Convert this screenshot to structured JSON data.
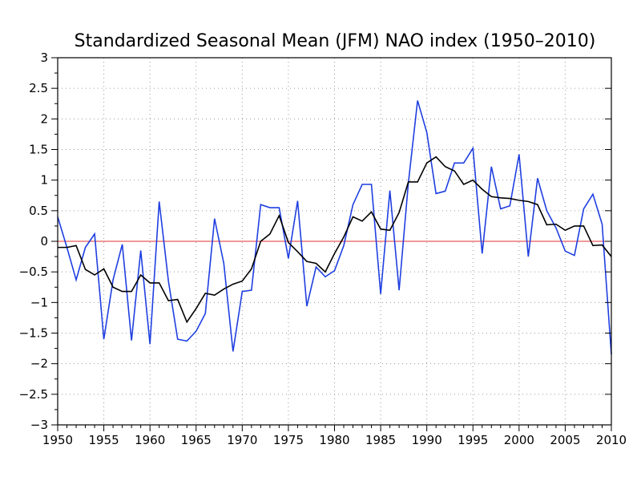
{
  "chart_data": {
    "type": "line",
    "title": "Standardized Seasonal Mean (JFM) NAO index (1950–2010)",
    "xlabel": "",
    "ylabel": "",
    "xlim": [
      1950,
      2010
    ],
    "ylim": [
      -3,
      3
    ],
    "grid": true,
    "x_ticks": [
      "1950",
      "1955",
      "1960",
      "1965",
      "1970",
      "1975",
      "1980",
      "1985",
      "1990",
      "1995",
      "2000",
      "2005",
      "2010"
    ],
    "y_ticks": [
      "3",
      "2.5",
      "2",
      "1.5",
      "1",
      "0.5",
      "0",
      "−0.5",
      "−1",
      "−1.5",
      "−2",
      "−2.5",
      "−3"
    ],
    "x": [
      1950,
      1951,
      1952,
      1953,
      1954,
      1955,
      1956,
      1957,
      1958,
      1959,
      1960,
      1961,
      1962,
      1963,
      1964,
      1965,
      1966,
      1967,
      1968,
      1969,
      1970,
      1971,
      1972,
      1973,
      1974,
      1975,
      1976,
      1977,
      1978,
      1979,
      1980,
      1981,
      1982,
      1983,
      1984,
      1985,
      1986,
      1987,
      1988,
      1989,
      1990,
      1991,
      1992,
      1993,
      1994,
      1995,
      1996,
      1997,
      1998,
      1999,
      2000,
      2001,
      2002,
      2003,
      2004,
      2005,
      2006,
      2007,
      2008,
      2009,
      2010
    ],
    "series": [
      {
        "color": "#1f3fe0",
        "values": [
          0.4,
          -0.1,
          -0.63,
          -0.1,
          0.12,
          -1.6,
          -0.63,
          -0.05,
          -1.62,
          -0.15,
          -1.68,
          0.65,
          -0.65,
          -1.6,
          -1.63,
          -1.47,
          -1.18,
          0.37,
          -0.36,
          -1.8,
          -0.82,
          -0.8,
          0.6,
          0.55,
          0.55,
          -0.28,
          0.66,
          -1.06,
          -0.42,
          -0.58,
          -0.48,
          -0.07,
          0.6,
          0.93,
          0.93,
          -0.86,
          0.83,
          -0.8,
          0.95,
          2.3,
          1.78,
          0.78,
          0.82,
          1.28,
          1.28,
          1.52,
          -0.2,
          1.22,
          0.53,
          0.58,
          1.42,
          -0.25,
          1.03,
          0.5,
          0.22,
          -0.16,
          -0.23,
          0.53,
          0.77,
          0.28,
          -1.85
        ]
      },
      {
        "color": "#000000",
        "values": [
          -0.1,
          -0.1,
          -0.07,
          -0.46,
          -0.55,
          -0.45,
          -0.75,
          -0.82,
          -0.82,
          -0.55,
          -0.68,
          -0.68,
          -0.97,
          -0.95,
          -1.32,
          -1.1,
          -0.85,
          -0.88,
          -0.78,
          -0.7,
          -0.65,
          -0.45,
          0.0,
          0.12,
          0.42,
          -0.02,
          -0.17,
          -0.33,
          -0.36,
          -0.5,
          -0.2,
          0.07,
          0.4,
          0.33,
          0.48,
          0.2,
          0.18,
          0.47,
          0.97,
          0.97,
          1.28,
          1.38,
          1.22,
          1.15,
          0.93,
          1.0,
          0.85,
          0.73,
          0.71,
          0.7,
          0.67,
          0.65,
          0.6,
          0.27,
          0.28,
          0.18,
          0.25,
          0.25,
          -0.07,
          -0.06,
          -0.25
        ]
      }
    ],
    "reference_line": {
      "y": 0,
      "color": "#e03030"
    },
    "colors": {
      "axis": "#000000",
      "grid": "#9a9a9a",
      "background": "#ffffff"
    }
  }
}
